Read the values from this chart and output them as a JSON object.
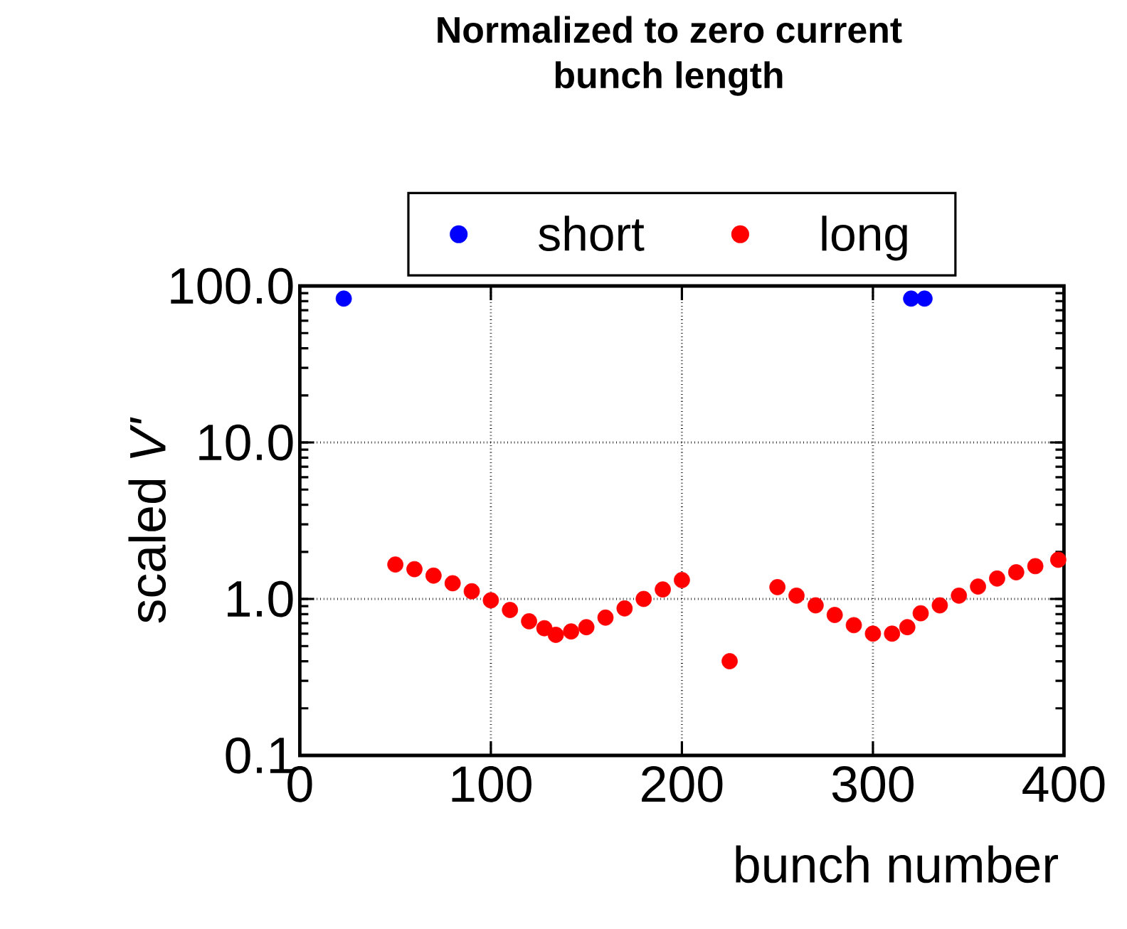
{
  "chart_data": {
    "type": "scatter",
    "title": "Normalized to zero current\nbunch length",
    "xlabel": "bunch number",
    "ylabel": "scaled *V'*",
    "series": [
      {
        "name": "short",
        "color": "#0000ff",
        "x": [
          23,
          320,
          327
        ],
        "values": [
          83,
          83,
          83
        ]
      },
      {
        "name": "long",
        "color": "#ff0000",
        "x": [
          50,
          60,
          70,
          80,
          90,
          100,
          110,
          120,
          128,
          134,
          142,
          150,
          160,
          170,
          180,
          190,
          200,
          225,
          250,
          260,
          270,
          280,
          290,
          300,
          310,
          318,
          325,
          335,
          345,
          355,
          365,
          375,
          385,
          397
        ],
        "values": [
          1.66,
          1.55,
          1.41,
          1.26,
          1.12,
          0.98,
          0.85,
          0.72,
          0.65,
          0.59,
          0.62,
          0.66,
          0.76,
          0.87,
          1.0,
          1.15,
          1.32,
          0.4,
          1.19,
          1.05,
          0.91,
          0.79,
          0.68,
          0.6,
          0.6,
          0.66,
          0.81,
          0.91,
          1.05,
          1.2,
          1.35,
          1.48,
          1.62,
          1.78
        ]
      }
    ],
    "xlim": [
      0,
      400
    ],
    "xticks": [
      0,
      100,
      200,
      300,
      400
    ],
    "ylim": [
      0.1,
      100
    ],
    "yticks": [
      {
        "value": 0.1,
        "label": "0.1"
      },
      {
        "value": 1,
        "label": "1.0"
      },
      {
        "value": 10,
        "label": "10.0"
      },
      {
        "value": 100,
        "label": "100.0"
      }
    ],
    "log": "y",
    "grid": true,
    "legend": "top",
    "marker": "circle"
  }
}
